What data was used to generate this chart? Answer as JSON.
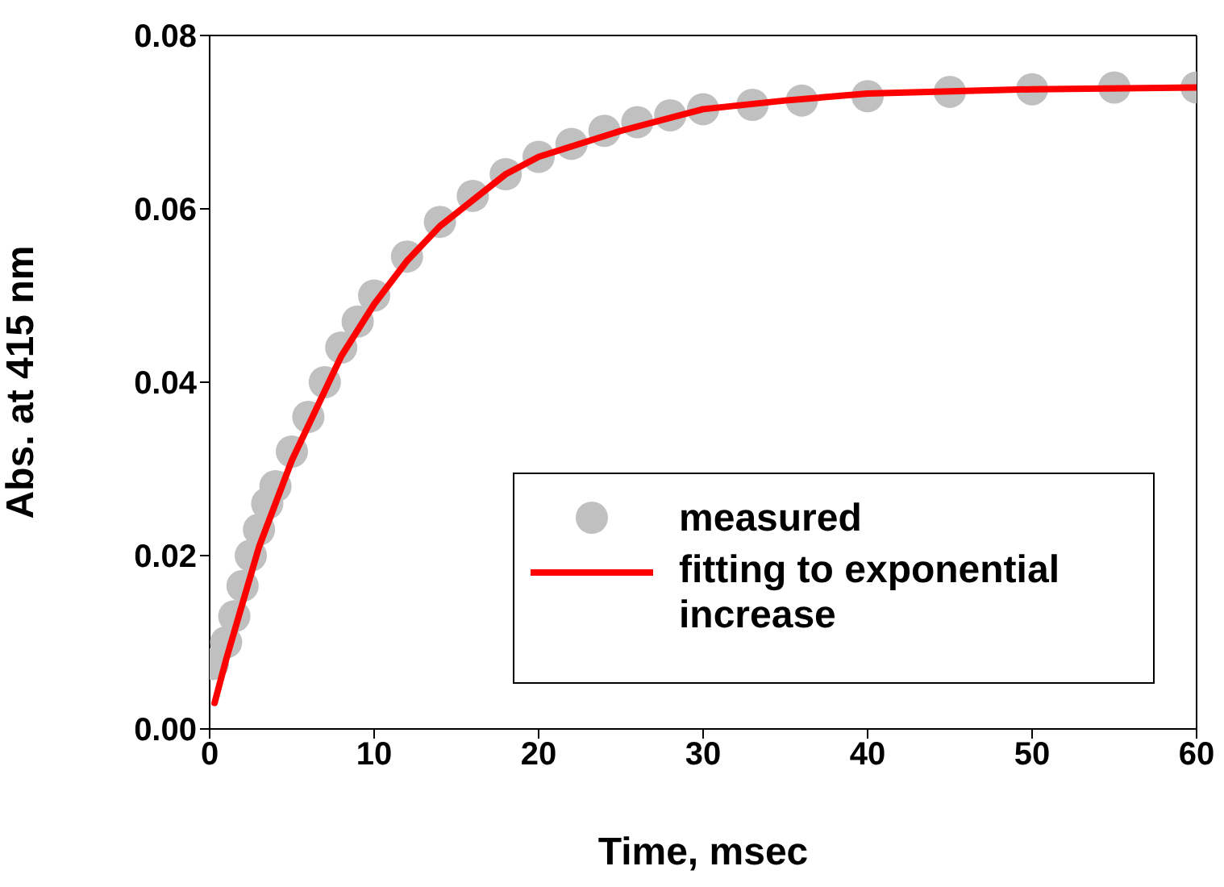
{
  "chart_data": {
    "type": "scatter",
    "xlabel": "Time, msec",
    "ylabel": "Abs. at 415 nm",
    "xlim": [
      0,
      60
    ],
    "xticks": [
      0,
      10,
      20,
      30,
      40,
      50,
      60
    ],
    "ylim": [
      0,
      0.08
    ],
    "yticks": [
      {
        "value": 0,
        "label": "0.00"
      },
      {
        "value": 0.02,
        "label": "0.02"
      },
      {
        "value": 0.04,
        "label": "0.04"
      },
      {
        "value": 0.06,
        "label": "0.06"
      },
      {
        "value": 0.08,
        "label": "0.08"
      }
    ],
    "legend": "bottom right",
    "marker": "circle",
    "series": [
      {
        "name": "measured",
        "color": "#c0c0c0",
        "x": [
          0.2,
          1,
          1.5,
          2,
          2.5,
          3,
          3.5,
          4,
          5,
          6,
          7,
          8,
          9,
          10,
          12,
          14,
          16,
          18,
          20,
          22,
          24,
          26,
          28,
          30,
          33,
          36,
          40,
          45,
          50,
          55,
          60
        ],
        "values": [
          0.0075,
          0.01,
          0.013,
          0.0165,
          0.02,
          0.023,
          0.026,
          0.028,
          0.032,
          0.036,
          0.04,
          0.044,
          0.047,
          0.05,
          0.0545,
          0.0585,
          0.0615,
          0.064,
          0.066,
          0.0675,
          0.069,
          0.07,
          0.0708,
          0.0715,
          0.072,
          0.0725,
          0.073,
          0.0735,
          0.0738,
          0.074,
          0.074
        ]
      },
      {
        "name": "fitting to exponential increase",
        "type": "line",
        "color": "#ff0000",
        "marker": "none",
        "line_style": "solid",
        "x": [
          0.3,
          1,
          2,
          3,
          4,
          5,
          6,
          7,
          8,
          9,
          10,
          12,
          14,
          16,
          18,
          20,
          25,
          30,
          35,
          40,
          50,
          60
        ],
        "values": [
          0.003,
          0.008,
          0.0145,
          0.021,
          0.026,
          0.031,
          0.035,
          0.039,
          0.043,
          0.046,
          0.049,
          0.054,
          0.058,
          0.061,
          0.064,
          0.066,
          0.069,
          0.0715,
          0.0725,
          0.0733,
          0.0738,
          0.074
        ]
      }
    ]
  }
}
